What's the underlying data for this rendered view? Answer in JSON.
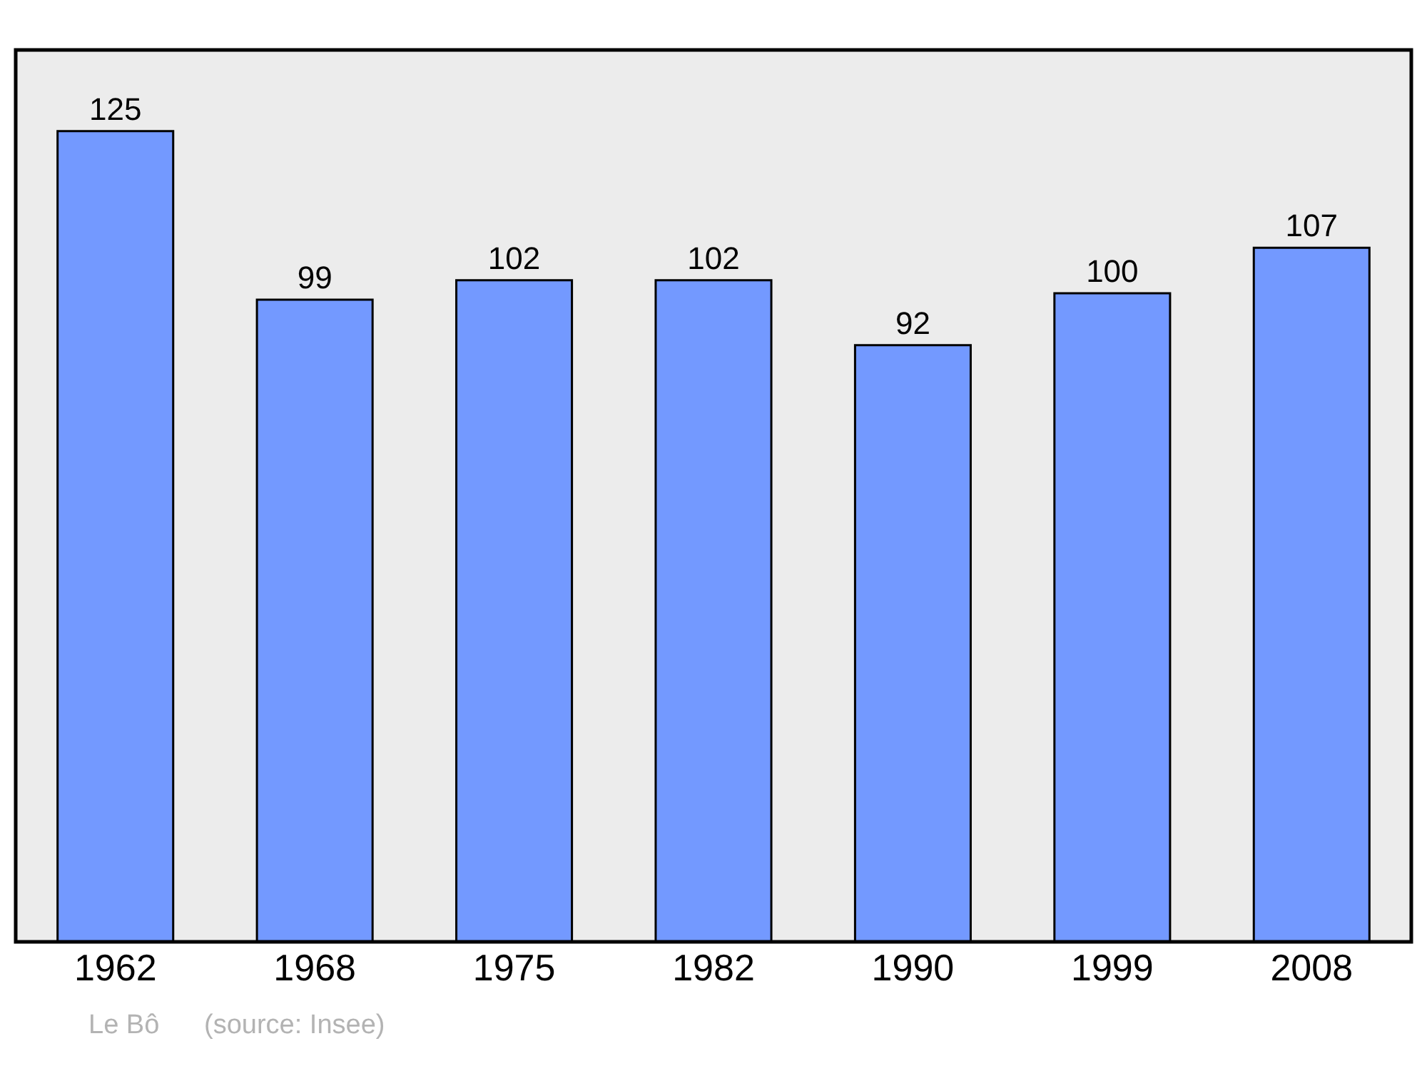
{
  "chart_data": {
    "type": "bar",
    "categories": [
      "1962",
      "1968",
      "1975",
      "1982",
      "1990",
      "1999",
      "2008"
    ],
    "values": [
      125,
      99,
      102,
      102,
      92,
      100,
      107
    ],
    "color": "#7399ff",
    "data_labels": true,
    "ylim": [
      0,
      137.5
    ],
    "tick_labels": "x",
    "grid": false,
    "legend": false,
    "annotations": [
      "Le Bô",
      "(source: Insee)"
    ]
  }
}
